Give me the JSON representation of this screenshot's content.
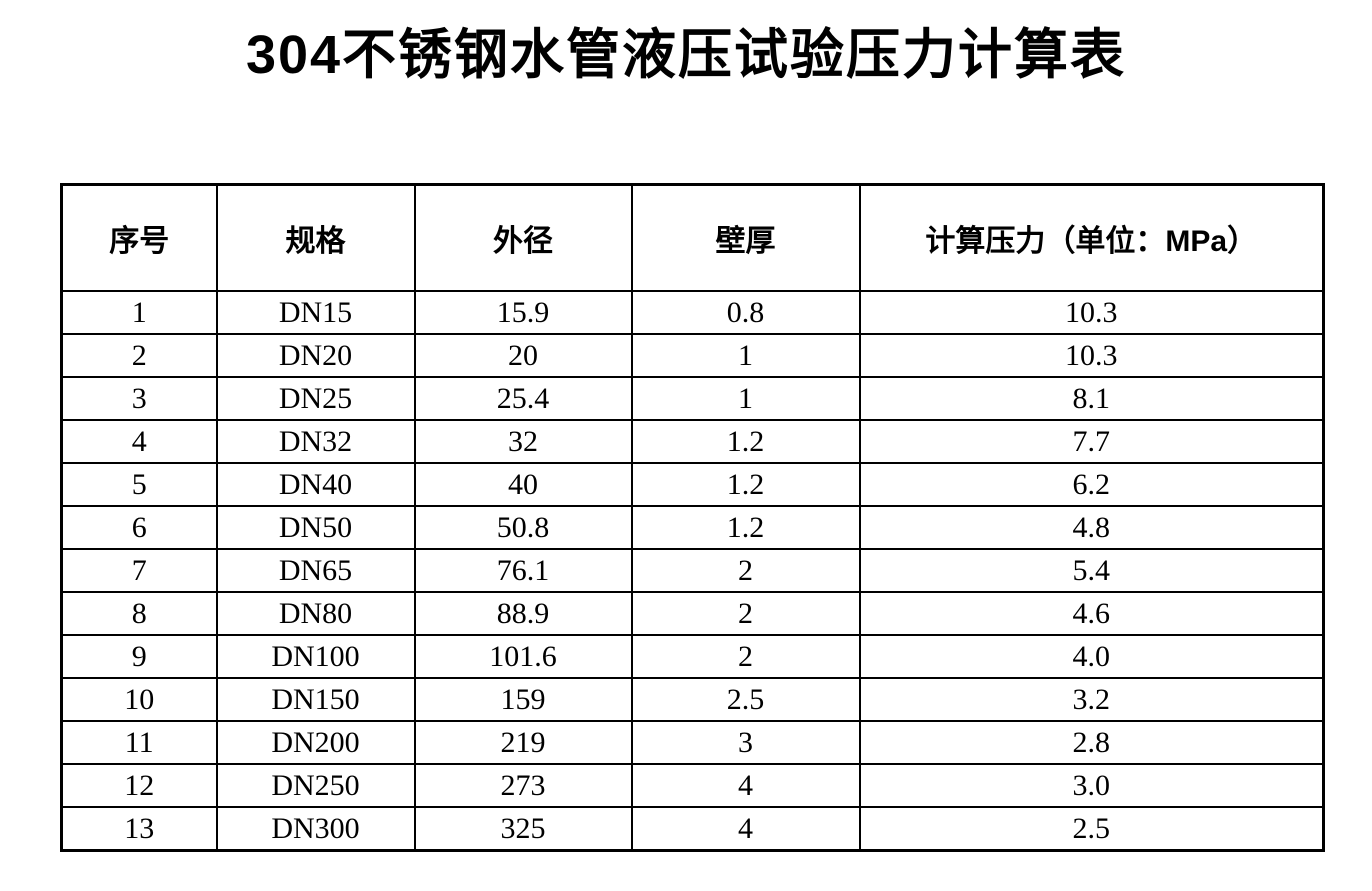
{
  "document": {
    "title": "304不锈钢水管液压试验压力计算表"
  },
  "table": {
    "headers": [
      "序号",
      "规格",
      "外径",
      "壁厚",
      "计算压力（单位：MPa）"
    ],
    "rows": [
      [
        "1",
        "DN15",
        "15.9",
        "0.8",
        "10.3"
      ],
      [
        "2",
        "DN20",
        "20",
        "1",
        "10.3"
      ],
      [
        "3",
        "DN25",
        "25.4",
        "1",
        "8.1"
      ],
      [
        "4",
        "DN32",
        "32",
        "1.2",
        "7.7"
      ],
      [
        "5",
        "DN40",
        "40",
        "1.2",
        "6.2"
      ],
      [
        "6",
        "DN50",
        "50.8",
        "1.2",
        "4.8"
      ],
      [
        "7",
        "DN65",
        "76.1",
        "2",
        "5.4"
      ],
      [
        "8",
        "DN80",
        "88.9",
        "2",
        "4.6"
      ],
      [
        "9",
        "DN100",
        "101.6",
        "2",
        "4.0"
      ],
      [
        "10",
        "DN150",
        "159",
        "2.5",
        "3.2"
      ],
      [
        "11",
        "DN200",
        "219",
        "3",
        "2.8"
      ],
      [
        "12",
        "DN250",
        "273",
        "4",
        "3.0"
      ],
      [
        "13",
        "DN300",
        "325",
        "4",
        "2.5"
      ]
    ]
  }
}
